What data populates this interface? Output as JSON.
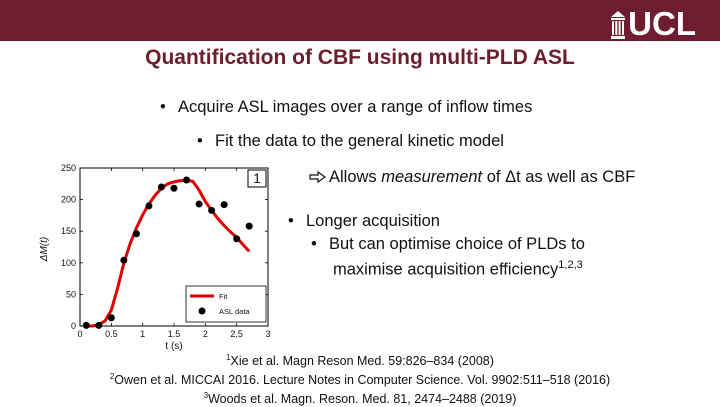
{
  "header": {
    "logo_text": "UCL",
    "bar_color": "#6e1c2f"
  },
  "slide": {
    "title": "Quantification of CBF using multi-PLD ASL",
    "bullets": {
      "b1": "Acquire ASL images over a range of inflow times",
      "b2": "Fit the data to the general kinetic model",
      "b3_prefix": "Allows ",
      "b3_em": "measurement",
      "b3_suffix": " of Δt as well as CBF",
      "b4": "Longer acquisition",
      "b5": "But can optimise choice of PLDs to",
      "b6": "maximise acquisition efficiency",
      "b6_sup": "1,2,3"
    },
    "references": [
      {
        "num": "1",
        "text": "Xie et al. Magn Reson Med. 59:826–834 (2008)"
      },
      {
        "num": "2",
        "text": "Owen et al. MICCAI 2016. Lecture Notes in Computer Science. Vol. 9902:511–518 (2016)"
      },
      {
        "num": "3",
        "text": "Woods et al. Magn. Reson. Med. 81, 2474–2488 (2019)"
      }
    ]
  },
  "chart_data": {
    "type": "scatter",
    "panel_label": "1",
    "xlabel": "t (s)",
    "ylabel": "ΔM(t)",
    "xlim": [
      0,
      3
    ],
    "ylim": [
      0,
      250
    ],
    "xticks": [
      "0",
      "0.5",
      "1",
      "1.5",
      "2",
      "2.5",
      "3"
    ],
    "yticks": [
      "0",
      "50",
      "100",
      "150",
      "200",
      "250"
    ],
    "legend": {
      "placement": "bottom-right",
      "fit_label": "Fit",
      "data_label": "ASL data"
    },
    "series": [
      {
        "name": "ASL data",
        "kind": "points",
        "x": [
          0.1,
          0.3,
          0.5,
          0.7,
          0.9,
          1.1,
          1.3,
          1.5,
          1.7,
          1.9,
          2.1,
          2.3,
          2.5,
          2.7
        ],
        "y": [
          1,
          1,
          13,
          104,
          146,
          190,
          220,
          218,
          231,
          193,
          183,
          192,
          138,
          158
        ]
      },
      {
        "name": "Fit",
        "kind": "line",
        "color": "#e00000",
        "x": [
          0.1,
          0.2,
          0.3,
          0.4,
          0.5,
          0.6,
          0.7,
          0.8,
          0.9,
          1.0,
          1.1,
          1.2,
          1.3,
          1.4,
          1.5,
          1.6,
          1.7,
          1.8,
          1.9,
          2.0,
          2.1,
          2.2,
          2.3,
          2.4,
          2.5,
          2.6,
          2.7
        ],
        "y": [
          0,
          0,
          2,
          8,
          25,
          60,
          100,
          130,
          155,
          176,
          193,
          207,
          218,
          225,
          228,
          230,
          230,
          229,
          215,
          197,
          183,
          170,
          159,
          149,
          140,
          129,
          118
        ]
      }
    ]
  }
}
